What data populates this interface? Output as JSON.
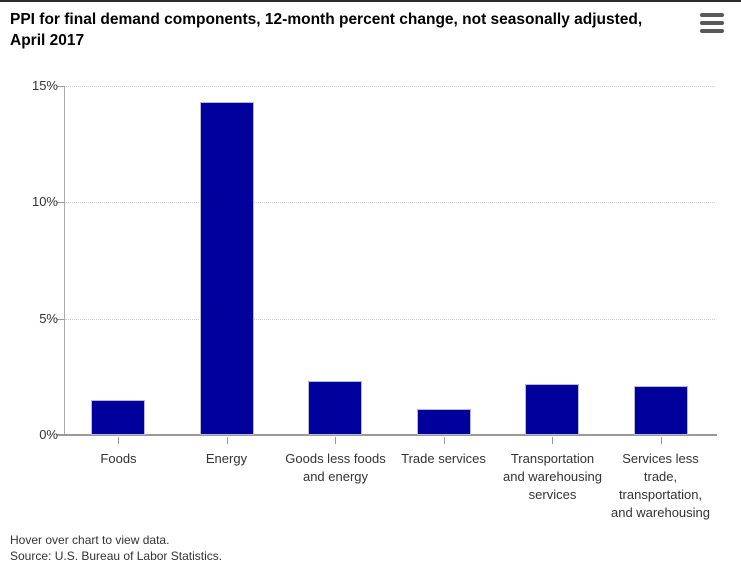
{
  "header": {
    "title": "PPI for final demand components, 12-month percent change, not seasonally adjusted, April 2017",
    "menu_icon": "hamburger-menu-icon"
  },
  "chart_data": {
    "type": "bar",
    "title": "PPI for final demand components, 12-month percent change, not seasonally adjusted, April 2017",
    "categories": [
      "Foods",
      "Energy",
      "Goods less foods and energy",
      "Trade services",
      "Transportation and warehousing services",
      "Services less trade, transportation, and warehousing"
    ],
    "values": [
      1.5,
      14.3,
      2.3,
      1.1,
      2.2,
      2.1
    ],
    "xlabel": "",
    "ylabel": "",
    "ylim": [
      0,
      15
    ],
    "yticks": [
      0,
      5,
      10,
      15
    ],
    "ytick_labels": [
      "0%",
      "5%",
      "10%",
      "15%"
    ],
    "grid": "horizontal-dotted",
    "legend": "none",
    "bar_color": "#00009C"
  },
  "footer": {
    "hover_note": "Hover over chart to view data.",
    "source": "Source: U.S. Bureau of Labor Statistics."
  },
  "colors": {
    "bar": "#00009C",
    "axis_line": "#999999",
    "gridline": "#cccccc",
    "label_text": "#333333",
    "title_text": "#000000",
    "menu_icon": "#595959"
  }
}
